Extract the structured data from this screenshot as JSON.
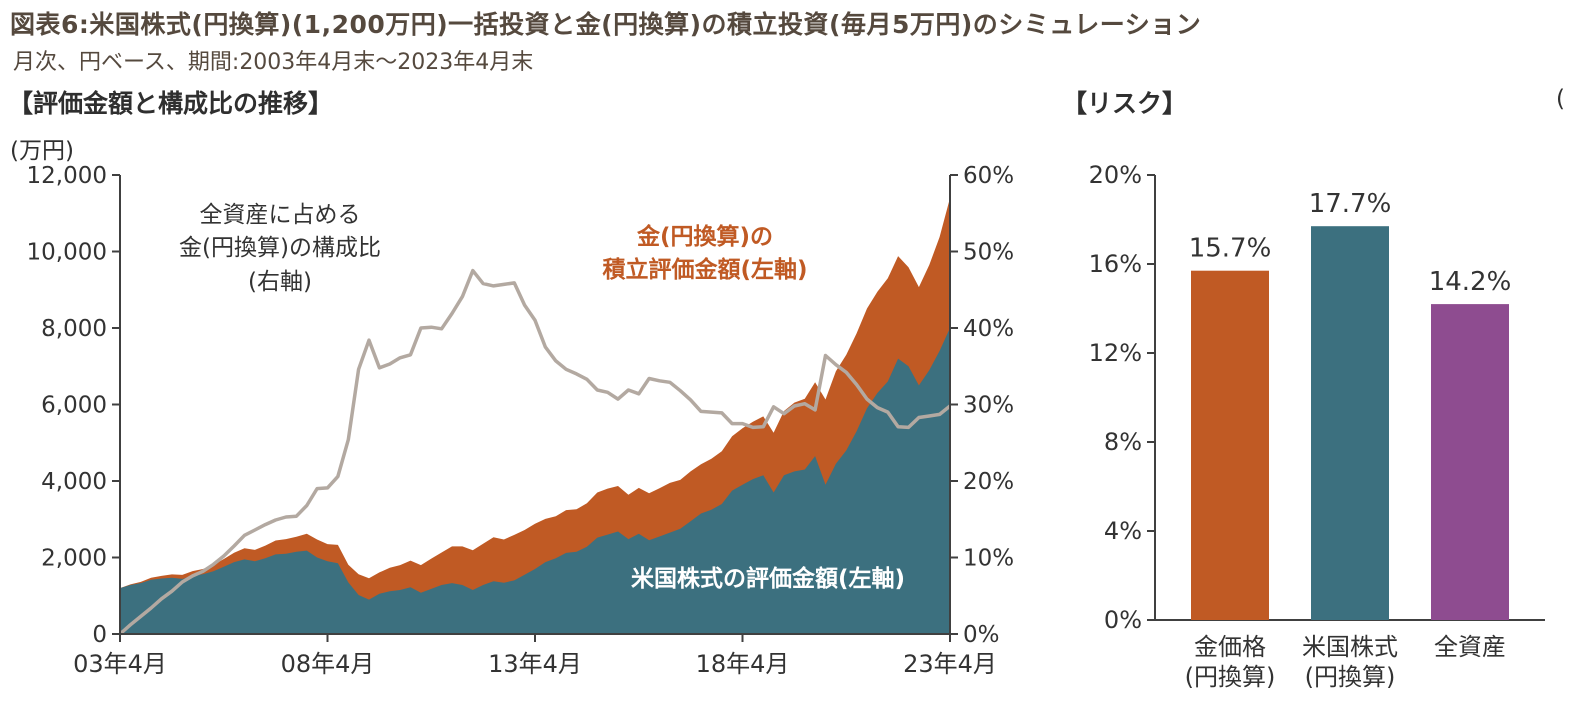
{
  "header": {
    "title": "図表6:米国株式(円換算)(1,200万円)一括投資と金(円換算)の積立投資(毎月5万円)のシミュレーション",
    "subtitle": "月次、円ベース、期間:2003年4月末〜2023年4月末",
    "cropped_right_text": "("
  },
  "left_chart": {
    "section_title": "【評価金額と構成比の推移】",
    "unit_label": "(万円)",
    "annotations": {
      "share_line": "全資産に占める\n金(円換算)の構成比\n(右軸)",
      "gold_value": "金(円換算)の\n積立評価金額(左軸)",
      "us_stock": "米国株式の評価金額(左軸)"
    }
  },
  "right_chart": {
    "section_title": "【リスク】"
  },
  "colors": {
    "gold_orange": "#C05A24",
    "us_teal": "#3C707F",
    "total_purple": "#8E4C90",
    "share_gray": "#B3A9A1",
    "annotation_white": "#FFFFFF",
    "heading_brown": "#55493E",
    "text_dark": "#333333",
    "axis_line": "#404040"
  },
  "chart_data": [
    {
      "type": "area",
      "title": "評価金額と構成比の推移",
      "xlabel": "",
      "ylabel": "(万円)",
      "grid": false,
      "x": [
        2003.25,
        2003.5,
        2003.75,
        2004,
        2004.25,
        2004.5,
        2004.75,
        2005,
        2005.25,
        2005.5,
        2005.75,
        2006,
        2006.25,
        2006.5,
        2006.75,
        2007,
        2007.25,
        2007.5,
        2007.75,
        2008,
        2008.25,
        2008.5,
        2008.75,
        2009,
        2009.25,
        2009.5,
        2009.75,
        2010,
        2010.25,
        2010.5,
        2010.75,
        2011,
        2011.25,
        2011.5,
        2011.75,
        2012,
        2012.25,
        2012.5,
        2012.75,
        2013,
        2013.25,
        2013.5,
        2013.75,
        2014,
        2014.25,
        2014.5,
        2014.75,
        2015,
        2015.25,
        2015.5,
        2015.75,
        2016,
        2016.25,
        2016.5,
        2016.75,
        2017,
        2017.25,
        2017.5,
        2017.75,
        2018,
        2018.25,
        2018.5,
        2018.75,
        2019,
        2019.25,
        2019.5,
        2019.75,
        2020,
        2020.25,
        2020.5,
        2020.75,
        2021,
        2021.25,
        2021.5,
        2021.75,
        2022,
        2022.25,
        2022.5,
        2022.75,
        2023,
        2023.25
      ],
      "series": [
        {
          "name": "米国株式の評価金額(左軸)",
          "type": "area",
          "axis": "left",
          "color": "#3C707F",
          "values": [
            1200,
            1280,
            1330,
            1420,
            1450,
            1470,
            1440,
            1520,
            1560,
            1640,
            1760,
            1880,
            1950,
            1900,
            1980,
            2080,
            2100,
            2150,
            2180,
            2000,
            1900,
            1850,
            1350,
            1020,
            900,
            1050,
            1120,
            1150,
            1220,
            1080,
            1180,
            1280,
            1330,
            1280,
            1150,
            1280,
            1380,
            1340,
            1400,
            1550,
            1700,
            1880,
            1980,
            2120,
            2150,
            2280,
            2520,
            2600,
            2680,
            2480,
            2620,
            2450,
            2550,
            2650,
            2750,
            2950,
            3150,
            3250,
            3400,
            3750,
            3900,
            4050,
            4150,
            3700,
            4150,
            4250,
            4300,
            4650,
            3900,
            4450,
            4800,
            5300,
            5900,
            6300,
            6600,
            7200,
            7000,
            6500,
            6900,
            7400,
            8000
          ]
        },
        {
          "name": "金(円換算)の積立評価金額(左軸)",
          "type": "area-stacked",
          "axis": "left",
          "color": "#C05A24",
          "values": [
            0,
            16,
            32,
            50,
            70,
            88,
            105,
            125,
            140,
            165,
            200,
            245,
            290,
            300,
            330,
            365,
            380,
            390,
            440,
            470,
            450,
            480,
            460,
            540,
            560,
            560,
            610,
            650,
            700,
            720,
            790,
            850,
            960,
            1010,
            1040,
            1080,
            1150,
            1130,
            1190,
            1170,
            1180,
            1130,
            1100,
            1120,
            1110,
            1140,
            1180,
            1200,
            1190,
            1160,
            1200,
            1230,
            1260,
            1300,
            1280,
            1300,
            1290,
            1330,
            1380,
            1420,
            1480,
            1500,
            1540,
            1560,
            1680,
            1800,
            1850,
            1930,
            2230,
            2420,
            2500,
            2560,
            2610,
            2650,
            2700,
            2680,
            2590,
            2570,
            2750,
            2980,
            3400
          ]
        },
        {
          "name": "全資産に占める金(円換算)の構成比(右軸)",
          "type": "line",
          "axis": "right",
          "color": "#B3A9A1",
          "values": [
            0,
            1.2,
            2.3,
            3.4,
            4.6,
            5.6,
            6.8,
            7.6,
            8.2,
            9.1,
            10.2,
            11.5,
            12.9,
            13.6,
            14.3,
            14.9,
            15.3,
            15.4,
            16.8,
            19.0,
            19.1,
            20.6,
            25.4,
            34.6,
            38.4,
            34.8,
            35.3,
            36.1,
            36.5,
            40.0,
            40.1,
            39.9,
            41.9,
            44.1,
            47.5,
            45.8,
            45.5,
            45.7,
            45.9,
            43.0,
            41.0,
            37.5,
            35.7,
            34.6,
            34.0,
            33.3,
            31.9,
            31.6,
            30.7,
            31.9,
            31.4,
            33.4,
            33.1,
            32.9,
            31.8,
            30.6,
            29.1,
            29.0,
            28.9,
            27.5,
            27.5,
            27.0,
            27.1,
            29.7,
            28.8,
            29.8,
            30.1,
            29.3,
            36.4,
            35.2,
            34.2,
            32.6,
            30.7,
            29.6,
            29.0,
            27.1,
            27.0,
            28.3,
            28.5,
            28.7,
            29.8
          ]
        }
      ],
      "left_axis": {
        "min": 0,
        "max": 12000,
        "ticks": [
          "0",
          "2,000",
          "4,000",
          "6,000",
          "8,000",
          "10,000",
          "12,000"
        ]
      },
      "right_axis": {
        "min": 0,
        "max": 60,
        "ticks": [
          "0%",
          "10%",
          "20%",
          "30%",
          "40%",
          "50%",
          "60%"
        ]
      },
      "x_axis": {
        "tick_labels": [
          "03年4月",
          "08年4月",
          "13年4月",
          "18年4月",
          "23年4月"
        ],
        "tick_positions": [
          2003.25,
          2008.25,
          2013.25,
          2018.25,
          2023.25
        ]
      },
      "legend": "annotations-in-plot"
    },
    {
      "type": "bar",
      "title": "リスク",
      "categories": [
        "金価格\n(円換算)",
        "米国株式\n(円換算)",
        "全資産"
      ],
      "values": [
        15.7,
        17.7,
        14.2
      ],
      "value_labels": [
        "15.7%",
        "17.7%",
        "14.2%"
      ],
      "colors": [
        "#C05A24",
        "#3C707F",
        "#8E4C90"
      ],
      "ylim": [
        0,
        20
      ],
      "y_ticks": [
        "0%",
        "4%",
        "8%",
        "12%",
        "16%",
        "20%"
      ],
      "grid": false,
      "legend_position": "none"
    }
  ]
}
